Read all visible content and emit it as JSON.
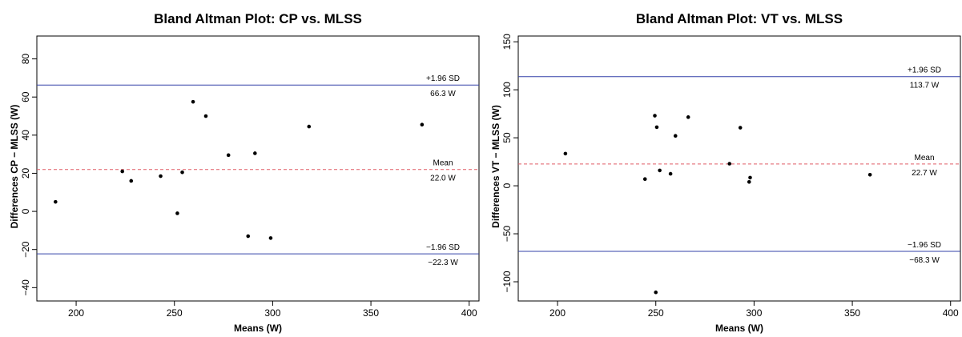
{
  "chart_data": [
    {
      "type": "scatter",
      "title": "Bland Altman Plot: CP vs. MLSS",
      "xlabel": "Means (W)",
      "ylabel": "Differences CP − MLSS (W)",
      "xlim": [
        180,
        405
      ],
      "ylim": [
        -47,
        92
      ],
      "x_ticks": [
        200,
        250,
        300,
        350,
        400
      ],
      "y_ticks": [
        -40,
        -20,
        0,
        20,
        40,
        60,
        80
      ],
      "grid": false,
      "points": [
        {
          "x": 189.5,
          "y": 5
        },
        {
          "x": 223.5,
          "y": 21
        },
        {
          "x": 228,
          "y": 16
        },
        {
          "x": 243,
          "y": 18.5
        },
        {
          "x": 251.5,
          "y": -1
        },
        {
          "x": 254,
          "y": 20.5
        },
        {
          "x": 259.5,
          "y": 57.5
        },
        {
          "x": 266,
          "y": 50
        },
        {
          "x": 277.5,
          "y": 29.5
        },
        {
          "x": 287.5,
          "y": -13
        },
        {
          "x": 291,
          "y": 30.5
        },
        {
          "x": 299,
          "y": -14
        },
        {
          "x": 318.5,
          "y": 44.5
        },
        {
          "x": 376,
          "y": 45.5
        }
      ],
      "upper_loa": {
        "value": 66.3,
        "name": "+1.96 SD",
        "label": "66.3 W"
      },
      "mean_line": {
        "value": 22.0,
        "name": "Mean",
        "label": "22.0 W"
      },
      "lower_loa": {
        "value": -22.3,
        "name": "−1.96 SD",
        "label": "−22.3 W"
      },
      "colors": {
        "loa": "#3341a8",
        "mean": "#e05a64",
        "points": "#000000"
      }
    },
    {
      "type": "scatter",
      "title": "Bland Altman Plot: VT vs. MLSS",
      "xlabel": "Means (W)",
      "ylabel": "Differences VT − MLSS (W)",
      "xlim": [
        180,
        405
      ],
      "ylim": [
        -120,
        156
      ],
      "x_ticks": [
        200,
        250,
        300,
        350,
        400
      ],
      "y_ticks": [
        -100,
        -50,
        0,
        50,
        100,
        150
      ],
      "grid": false,
      "points": [
        {
          "x": 204,
          "y": 33.5
        },
        {
          "x": 244.5,
          "y": 7
        },
        {
          "x": 249.5,
          "y": 73
        },
        {
          "x": 250.5,
          "y": 61
        },
        {
          "x": 250,
          "y": -111
        },
        {
          "x": 252,
          "y": 16
        },
        {
          "x": 257.5,
          "y": 12.5
        },
        {
          "x": 260,
          "y": 52
        },
        {
          "x": 266.5,
          "y": 71.5
        },
        {
          "x": 287.5,
          "y": 23
        },
        {
          "x": 293,
          "y": 60.5
        },
        {
          "x": 297.5,
          "y": 4
        },
        {
          "x": 298,
          "y": 8.5
        },
        {
          "x": 359,
          "y": 11.5
        }
      ],
      "upper_loa": {
        "value": 113.7,
        "name": "+1.96 SD",
        "label": "113.7 W"
      },
      "mean_line": {
        "value": 22.7,
        "name": "Mean",
        "label": "22.7 W"
      },
      "lower_loa": {
        "value": -68.3,
        "name": "−1.96 SD",
        "label": "−68.3 W"
      },
      "colors": {
        "loa": "#3341a8",
        "mean": "#e05a64",
        "points": "#000000"
      }
    }
  ]
}
